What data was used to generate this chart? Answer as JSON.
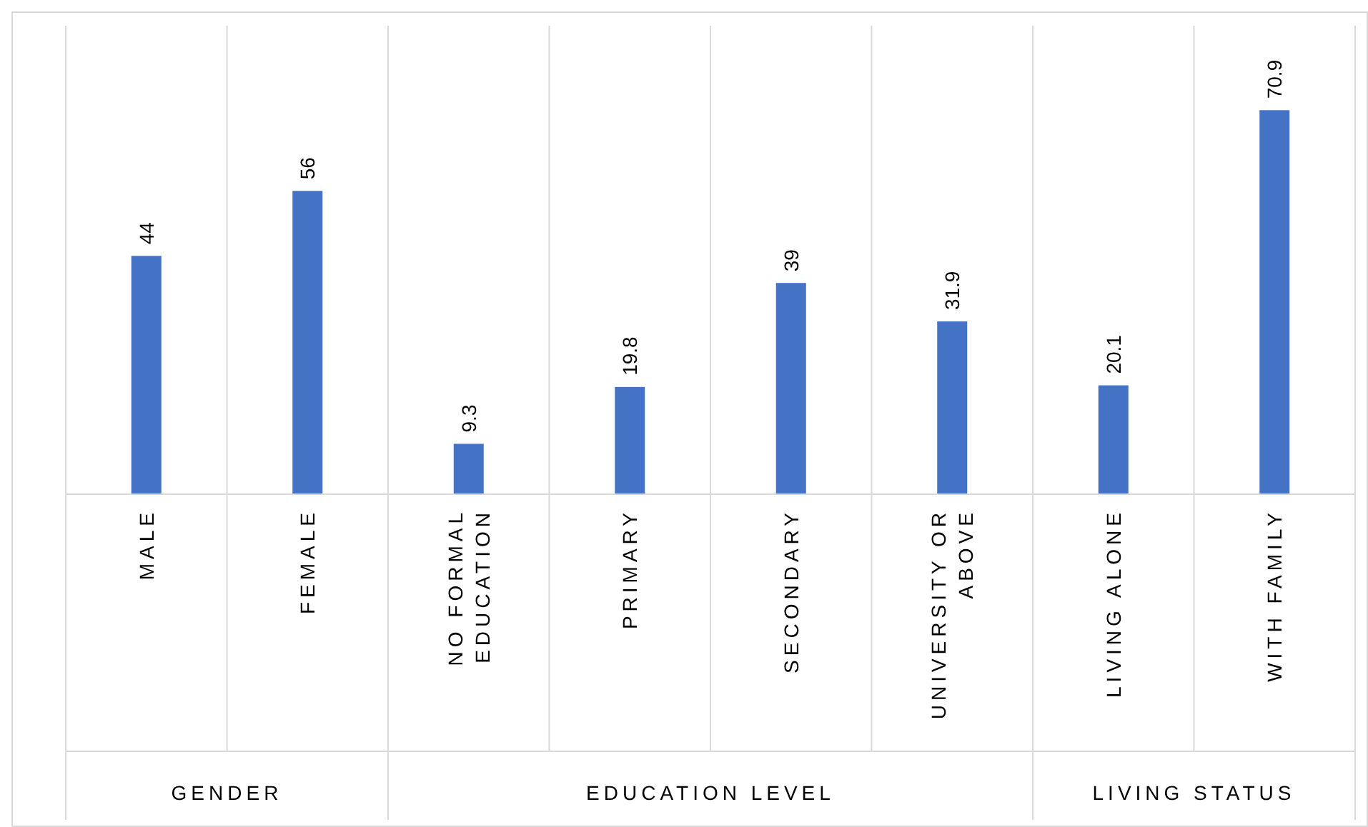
{
  "chart_data": {
    "type": "bar",
    "categories": [
      "MALE",
      "FEMALE",
      "NO FORMAL EDUCATION",
      "PRIMARY",
      "SECONDARY",
      "UNIVERSITY OR ABOVE",
      "LIVING ALONE",
      "WITH FAMILY"
    ],
    "values": [
      44,
      56,
      9.3,
      19.8,
      39,
      31.9,
      20.1,
      70.9
    ],
    "color": "#4472c4",
    "data_labels": true,
    "grid": "x",
    "annotations": [
      "GENDER",
      "EDUCATION LEVEL",
      "LIVING STATUS"
    ]
  }
}
